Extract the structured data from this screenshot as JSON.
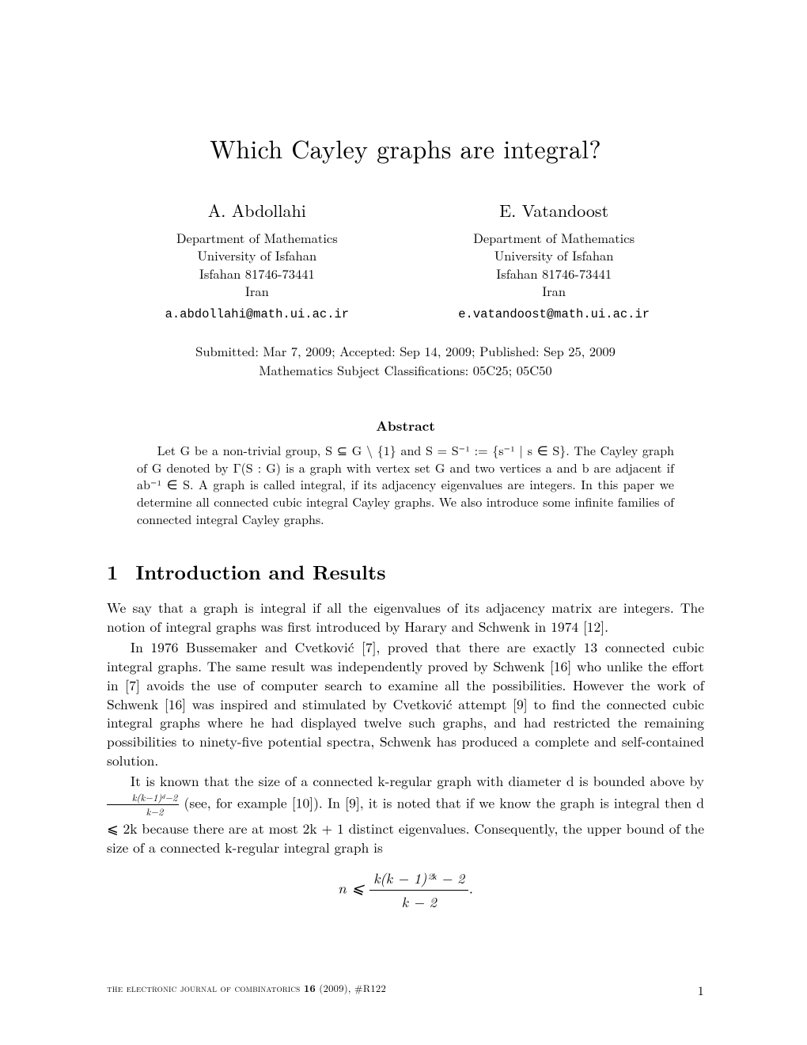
{
  "paper": {
    "title": "Which Cayley graphs are integral?",
    "authors": [
      {
        "name": "A. Abdollahi",
        "affil1": "Department of Mathematics",
        "affil2": "University of Isfahan",
        "affil3": "Isfahan 81746-73441",
        "affil4": "Iran",
        "email": "a.abdollahi@math.ui.ac.ir"
      },
      {
        "name": "E. Vatandoost",
        "affil1": "Department of Mathematics",
        "affil2": "University of Isfahan",
        "affil3": "Isfahan 81746-73441",
        "affil4": "Iran",
        "email": "e.vatandoost@math.ui.ac.ir"
      }
    ],
    "submission_line": "Submitted: Mar 7, 2009; Accepted: Sep 14, 2009; Published: Sep 25, 2009",
    "msc_line": "Mathematics Subject Classifications: 05C25; 05C50",
    "abstract": {
      "heading": "Abstract",
      "text": "Let G be a non-trivial group, S ⊆ G \\ {1} and S = S⁻¹ := {s⁻¹ | s ∈ S}. The Cayley graph of G denoted by Γ(S : G) is a graph with vertex set G and two vertices a and b are adjacent if ab⁻¹ ∈ S. A graph is called integral, if its adjacency eigenvalues are integers. In this paper we determine all connected cubic integral Cayley graphs. We also introduce some infinite families of connected integral Cayley graphs."
    },
    "section": {
      "number": "1",
      "title": "Introduction and Results"
    },
    "para1": "We say that a graph is integral if all the eigenvalues of its adjacency matrix are integers. The notion of integral graphs was first introduced by Harary and Schwenk in 1974 [12].",
    "para2": "In 1976 Bussemaker and Cvetković [7], proved that there are exactly 13 connected cubic integral graphs. The same result was independently proved by Schwenk [16] who unlike the effort in [7] avoids the use of computer search to examine all the possibilities. However the work of Schwenk [16] was inspired and stimulated by Cvetković attempt [9] to find the connected cubic integral graphs where he had displayed twelve such graphs, and had restricted the remaining possibilities to ninety-five potential spectra, Schwenk has produced a complete and self-contained solution.",
    "para3_a": "It is known that the size of a connected k-regular graph with diameter d is bounded above by ",
    "para3_frac_num": "k(k−1)ᵈ−2",
    "para3_frac_den": "k−2",
    "para3_b": " (see, for example [10]). In [9], it is noted that if we know the graph is integral then d ⩽ 2k because there are at most 2k + 1 distinct eigenvalues. Consequently, the upper bound of the size of a connected k-regular integral graph is",
    "display": {
      "lhs": "n ⩽ ",
      "num": "k(k − 1)²ᵏ − 2",
      "den": "k − 2",
      "punct": "."
    },
    "footer": {
      "journal": "the electronic journal of combinatorics ",
      "vol": "16",
      "year": " (2009), ",
      "issue": "#R122",
      "pagenum": "1"
    },
    "colors": {
      "text": "#000000",
      "background": "#ffffff"
    },
    "fontsizes": {
      "title": 32,
      "author_name": 22,
      "affil": 16.5,
      "email_mono": 15.5,
      "abstract_head": 17,
      "abstract_body": 16,
      "section_head": 25,
      "body": 17.5,
      "footer": 12.5
    }
  }
}
